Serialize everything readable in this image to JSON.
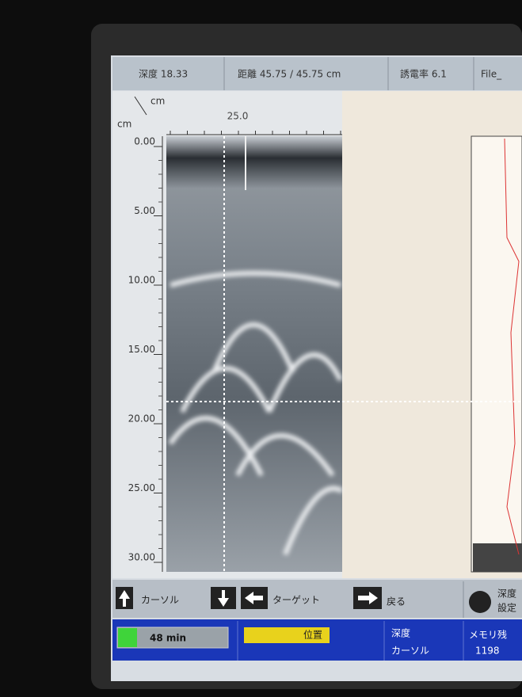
{
  "header": {
    "depth": "深度 18.33",
    "distance": "距離 45.75 / 45.75 cm",
    "dielectric": "誘電率 6.1",
    "file": "File_"
  },
  "scan": {
    "x_unit": "cm",
    "y_unit": "cm",
    "x_tick": "25.0",
    "depth_ticks": [
      "0.00",
      "5.00",
      "10.00",
      "15.00",
      "20.00",
      "25.00",
      "30.00"
    ]
  },
  "buttons": {
    "cursor": "カーソル",
    "target": "ターゲット",
    "back": "戻る",
    "depth_set_1": "深度",
    "depth_set_2": "設定"
  },
  "status": {
    "time": "48 min",
    "position": "位置",
    "depth": "深度",
    "cursor": "カーソル",
    "memory": "メモリ残",
    "memory_value": "1198"
  }
}
